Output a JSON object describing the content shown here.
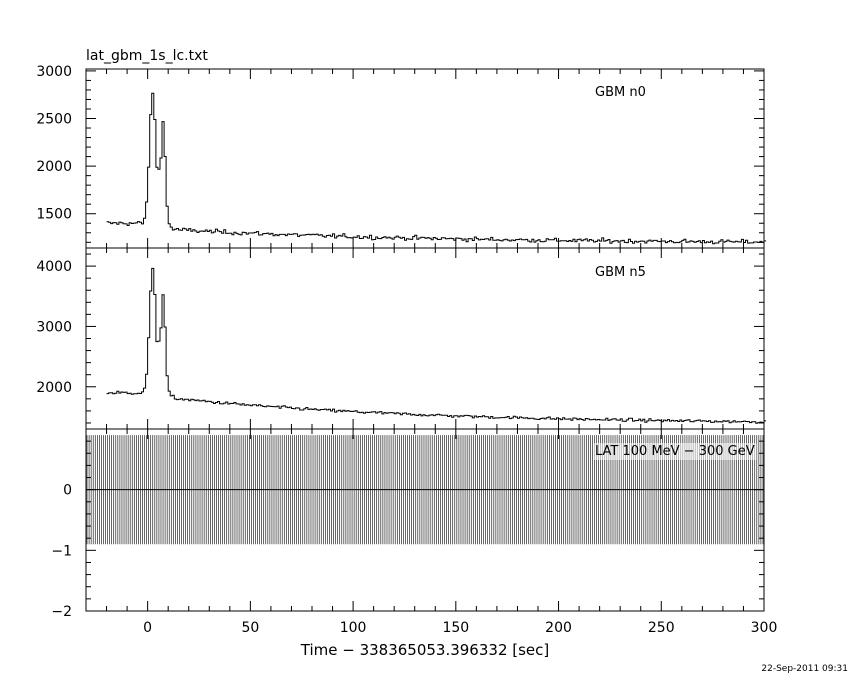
{
  "title": "lat_gbm_1s_lc.txt",
  "timestamp": "22-Sep-2011 09:31",
  "xaxis": {
    "label": "Time − 338365053.396332 [sec]",
    "range": [
      -30,
      300
    ],
    "ticks": [
      0,
      50,
      100,
      150,
      200,
      250,
      300
    ],
    "tick_labels": [
      "0",
      "50",
      "100",
      "150",
      "200",
      "250",
      "300"
    ]
  },
  "chart_data": [
    {
      "type": "line",
      "label": "GBM n0",
      "ylim": [
        1140,
        3020
      ],
      "yticks": [
        1500,
        2000,
        2500,
        3000
      ],
      "ytick_labels": [
        "1500",
        "2000",
        "2500",
        "3000"
      ],
      "shape": {
        "pre_trigger_level": 1400,
        "peak1": {
          "t": 2,
          "value": 2950
        },
        "peak2": {
          "t": 7,
          "value": 2650
        },
        "tail_level_t15": 1330,
        "tail_level_t300": 1190
      }
    },
    {
      "type": "line",
      "label": "GBM n5",
      "ylim": [
        1300,
        4300
      ],
      "yticks": [
        2000,
        3000,
        4000
      ],
      "ytick_labels": [
        "2000",
        "3000",
        "4000"
      ],
      "shape": {
        "pre_trigger_level": 1900,
        "peak1": {
          "t": 2,
          "value": 4200
        },
        "peak2": {
          "t": 7,
          "value": 3800
        },
        "tail_level_t15": 1800,
        "tail_level_t300": 1380
      }
    },
    {
      "type": "bar",
      "label": "LAT 100 MeV − 300 GeV",
      "ylim": [
        -2,
        1
      ],
      "yticks": [
        -2,
        -1,
        0
      ],
      "ytick_labels": [
        "−2",
        "−1",
        "0"
      ],
      "shape": {
        "error_bar_range": [
          -0.9,
          0.9
        ],
        "value": 0,
        "bin_width_sec": 1
      }
    }
  ]
}
